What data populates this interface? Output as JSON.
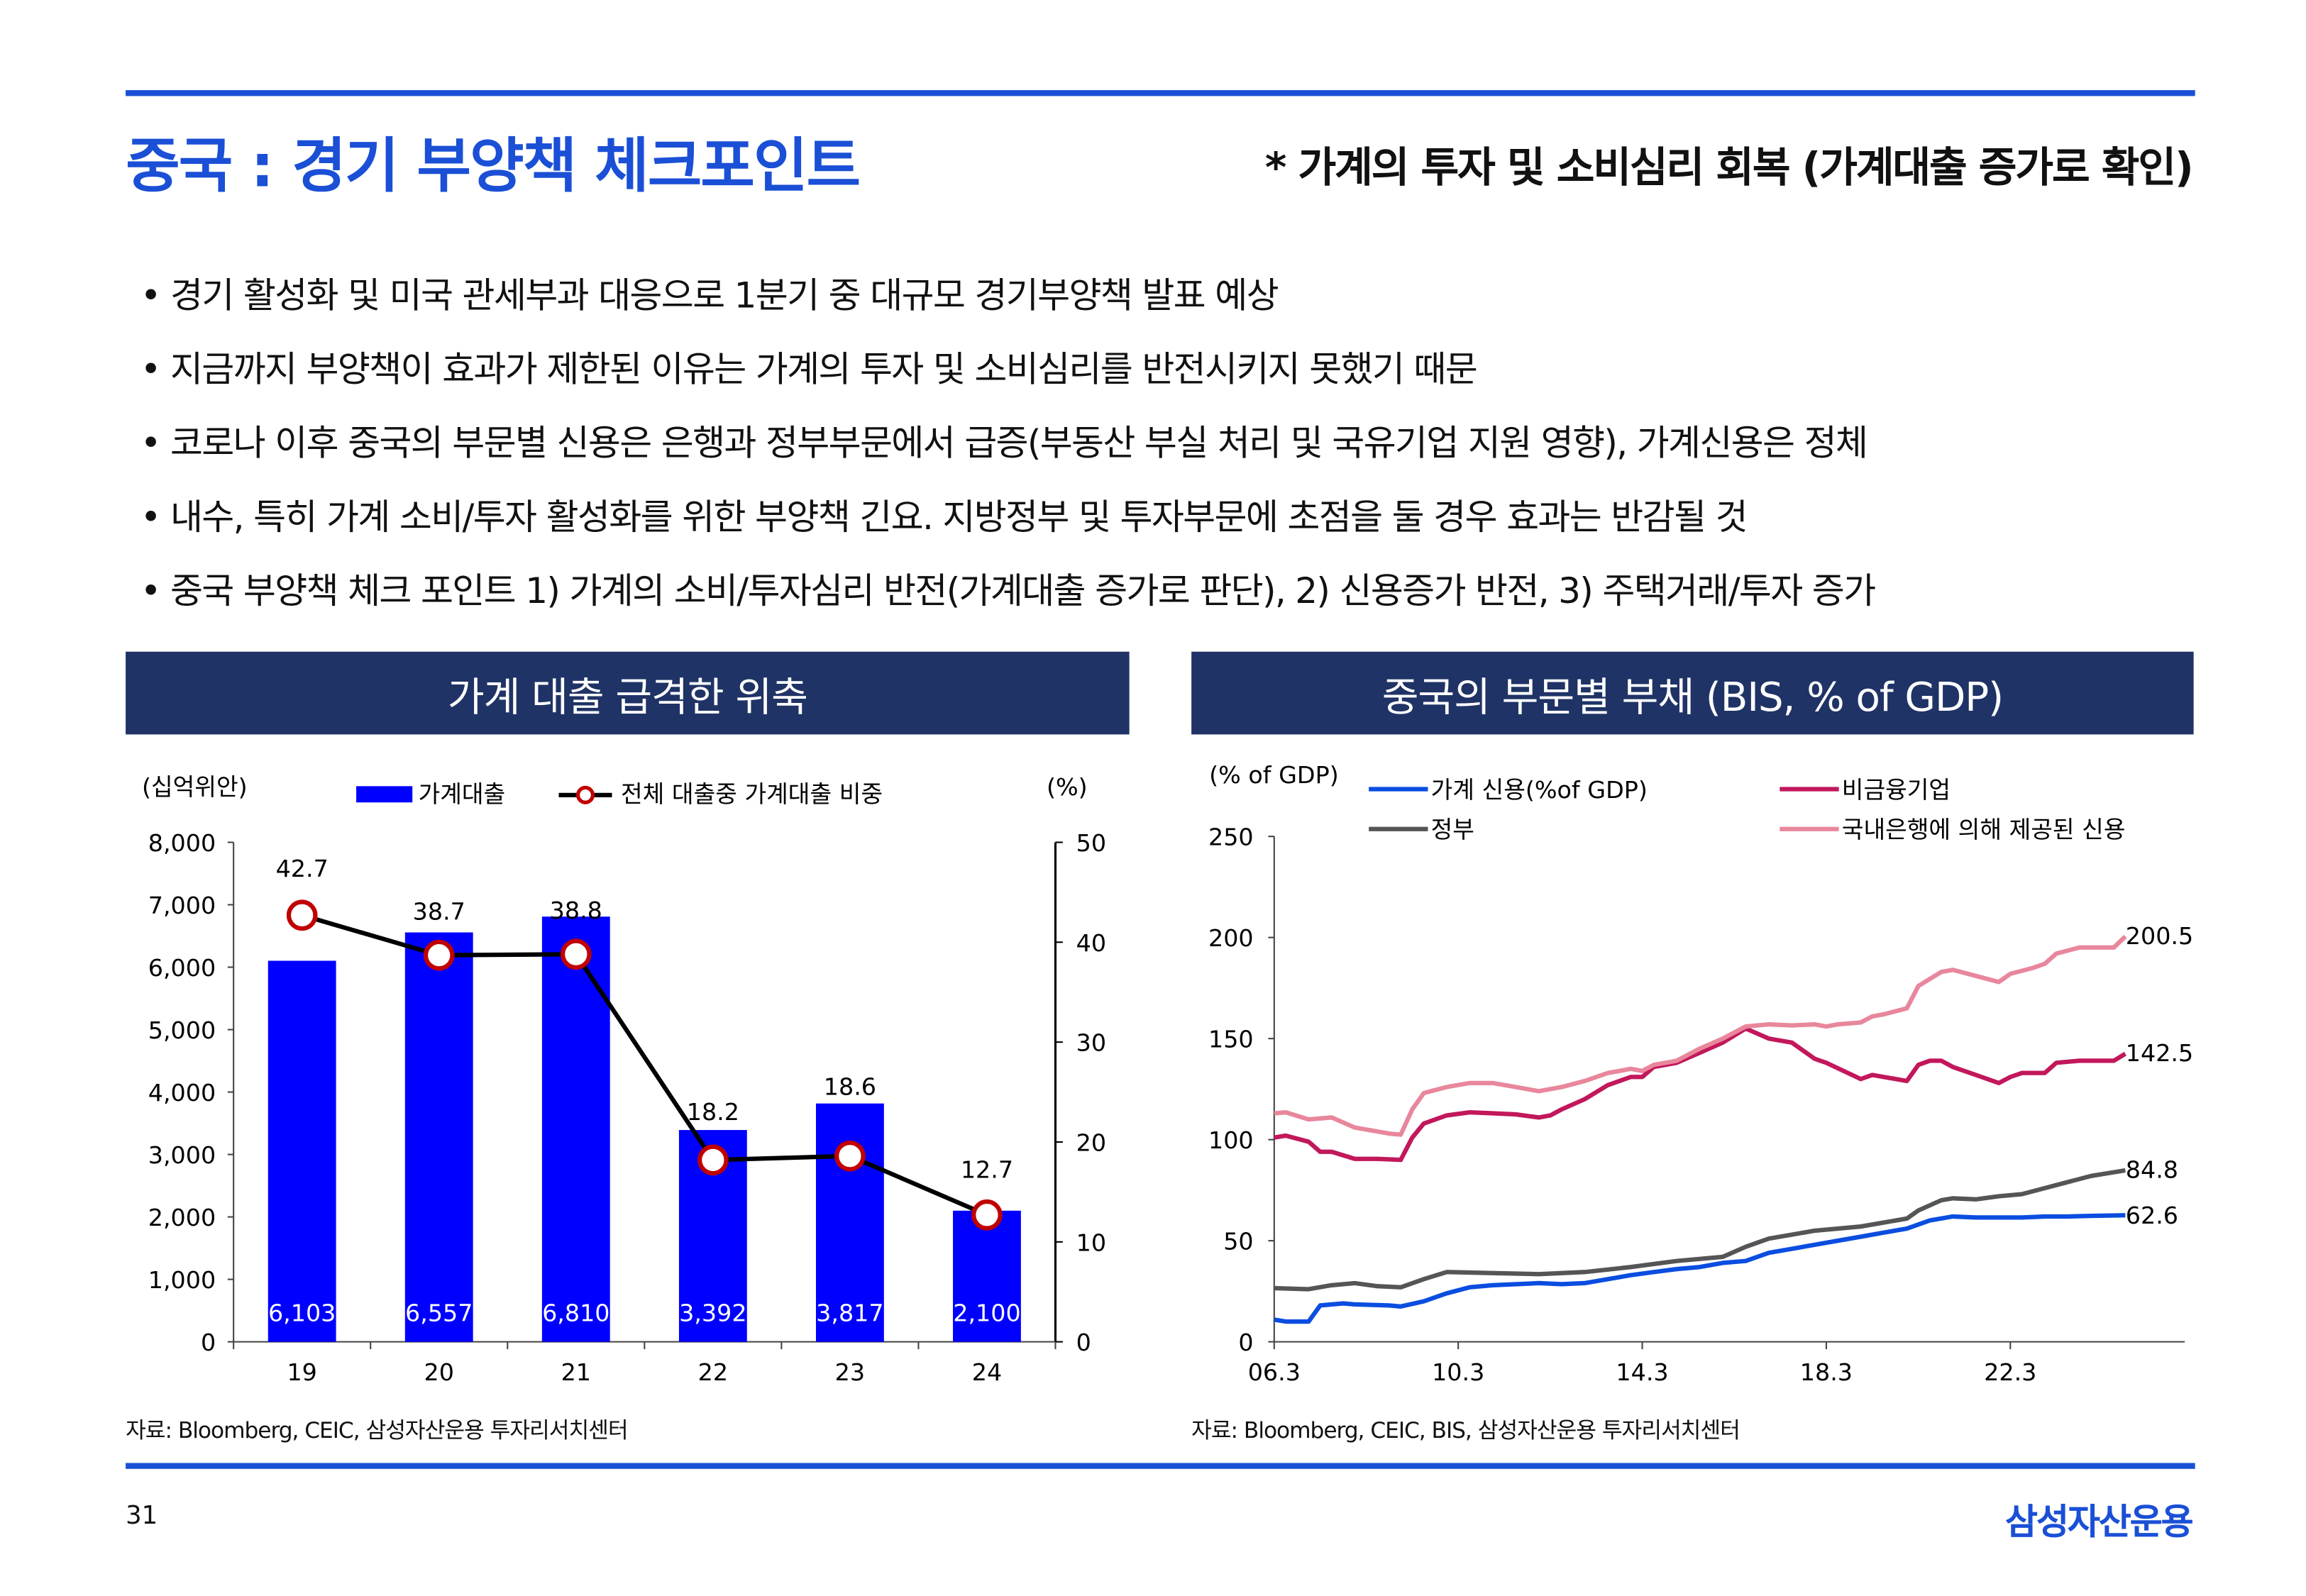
{
  "header": {
    "title": "중국 : 경기 부양책 체크포인트",
    "subtitle": "* 가계의 투자 및 소비심리 회복 (가계대출 증가로 확인)"
  },
  "bullets": [
    "• 경기 활성화 및 미국 관세부과 대응으로 1분기 중 대규모 경기부양책 발표 예상",
    "• 지금까지 부양책이 효과가 제한된 이유는 가계의 투자 및 소비심리를 반전시키지 못했기 때문",
    "• 코로나 이후 중국의 부문별 신용은 은행과 정부부문에서 급증(부동산 부실 처리 및 국유기업 지원 영향), 가계신용은 정체",
    "• 내수, 특히 가계 소비/투자 활성화를 위한 부양책 긴요. 지방정부 및 투자부문에 초점을 둘 경우 효과는 반감될 것",
    "• 중국 부양책 체크 포인트 1) 가계의 소비/투자심리 반전(가계대출 증가로 판단), 2) 신용증가 반전, 3) 주택거래/투자 증가"
  ],
  "footer": {
    "page": "31",
    "logo": "삼성자산운용"
  },
  "colors": {
    "accent": "#1a4fd6",
    "navy": "#1f3366",
    "bar": "#0000ff",
    "household": "#0a4de0",
    "gov": "#555555",
    "nfc": "#c2185b",
    "bank": "#e8879c"
  },
  "chart_data": [
    {
      "type": "bar",
      "title": "가계 대출 급격한 위축",
      "source": "자료: Bloomberg, CEIC, 삼성자산운용 투자리서치센터",
      "ylabel": "(십억위안)",
      "y2label": "(%)",
      "categories": [
        "19",
        "20",
        "21",
        "22",
        "23",
        "24"
      ],
      "ylim": [
        0,
        8000
      ],
      "yticks": [
        "0",
        "1,000",
        "2,000",
        "3,000",
        "4,000",
        "5,000",
        "6,000",
        "7,000",
        "8,000"
      ],
      "y2lim": [
        0,
        50
      ],
      "y2ticks": [
        "0",
        "10",
        "20",
        "30",
        "40",
        "50"
      ],
      "series": [
        {
          "name": "가계대출",
          "type": "bar",
          "values": [
            6103,
            6557,
            6810,
            3392,
            3817,
            2100
          ],
          "labels": [
            "6,103",
            "6,557",
            "6,810",
            "3,392",
            "3,817",
            "2,100"
          ]
        },
        {
          "name": "전체 대출중 가계대출 비중",
          "type": "line",
          "axis": "right",
          "values": [
            42.7,
            38.7,
            38.8,
            18.2,
            18.6,
            12.7
          ],
          "labels": [
            "42.7",
            "38.7",
            "38.8",
            "18.2",
            "18.6",
            "12.7"
          ]
        }
      ]
    },
    {
      "type": "line",
      "title": "중국의 부문별 부채 (BIS, % of GDP)",
      "source": "자료: Bloomberg, CEIC, BIS, 삼성자산운용 투자리서치센터",
      "ylabel": "(% of GDP)",
      "ylim": [
        0,
        250
      ],
      "yticks": [
        "0",
        "50",
        "100",
        "150",
        "200",
        "250"
      ],
      "xticks": [
        "06.3",
        "10.3",
        "14.3",
        "18.3",
        "22.3"
      ],
      "series": [
        {
          "name": "가계 신용(%of GDP)",
          "color": "#0a4de0",
          "end_label": "62.6",
          "points": [
            [
              2006.25,
              11
            ],
            [
              2006.5,
              10
            ],
            [
              2007.0,
              10
            ],
            [
              2007.25,
              18
            ],
            [
              2007.75,
              19
            ],
            [
              2008.0,
              18.5
            ],
            [
              2008.75,
              18
            ],
            [
              2009.0,
              17.5
            ],
            [
              2009.5,
              20
            ],
            [
              2010.0,
              24
            ],
            [
              2010.5,
              27
            ],
            [
              2011.0,
              28
            ],
            [
              2012.0,
              29
            ],
            [
              2012.5,
              28.5
            ],
            [
              2013.0,
              29
            ],
            [
              2013.5,
              31
            ],
            [
              2014.0,
              33
            ],
            [
              2014.5,
              34.5
            ],
            [
              2015.0,
              36
            ],
            [
              2015.5,
              37
            ],
            [
              2016.0,
              39
            ],
            [
              2016.5,
              40
            ],
            [
              2017.0,
              44
            ],
            [
              2017.5,
              46
            ],
            [
              2018.0,
              48
            ],
            [
              2018.5,
              50
            ],
            [
              2019.0,
              52
            ],
            [
              2019.5,
              54
            ],
            [
              2020.0,
              56
            ],
            [
              2020.5,
              60
            ],
            [
              2021.0,
              62
            ],
            [
              2021.5,
              61.5
            ],
            [
              2022.0,
              61.5
            ],
            [
              2022.5,
              61.5
            ],
            [
              2023.0,
              62
            ],
            [
              2023.5,
              62
            ],
            [
              2024.0,
              62.3
            ],
            [
              2024.75,
              62.6
            ]
          ]
        },
        {
          "name": "정부",
          "color": "#555555",
          "end_label": "84.8",
          "points": [
            [
              2006.25,
              26.5
            ],
            [
              2007.0,
              26
            ],
            [
              2007.5,
              28
            ],
            [
              2008.0,
              29
            ],
            [
              2008.5,
              27.5
            ],
            [
              2009.0,
              27
            ],
            [
              2009.5,
              31
            ],
            [
              2010.0,
              34.5
            ],
            [
              2011.0,
              34
            ],
            [
              2012.0,
              33.5
            ],
            [
              2013.0,
              34.5
            ],
            [
              2014.0,
              37
            ],
            [
              2015.0,
              40
            ],
            [
              2016.0,
              42
            ],
            [
              2016.5,
              47
            ],
            [
              2017.0,
              51
            ],
            [
              2017.5,
              53
            ],
            [
              2018.0,
              55
            ],
            [
              2019.0,
              57
            ],
            [
              2019.5,
              59
            ],
            [
              2020.0,
              61
            ],
            [
              2020.25,
              65
            ],
            [
              2020.75,
              70
            ],
            [
              2021.0,
              71
            ],
            [
              2021.5,
              70.5
            ],
            [
              2022.0,
              72
            ],
            [
              2022.5,
              73
            ],
            [
              2023.0,
              76
            ],
            [
              2023.5,
              79
            ],
            [
              2024.0,
              82
            ],
            [
              2024.75,
              84.8
            ]
          ]
        },
        {
          "name": "비금융기업",
          "color": "#c2185b",
          "end_label": "142.5",
          "points": [
            [
              2006.25,
              101
            ],
            [
              2006.5,
              102
            ],
            [
              2007.0,
              99
            ],
            [
              2007.25,
              94
            ],
            [
              2007.5,
              94
            ],
            [
              2008.0,
              90.5
            ],
            [
              2008.5,
              90.5
            ],
            [
              2009.0,
              90
            ],
            [
              2009.25,
              101
            ],
            [
              2009.5,
              108
            ],
            [
              2010.0,
              112
            ],
            [
              2010.5,
              113.5
            ],
            [
              2011.0,
              113
            ],
            [
              2011.5,
              112.5
            ],
            [
              2012.0,
              111
            ],
            [
              2012.25,
              112
            ],
            [
              2012.5,
              115
            ],
            [
              2013.0,
              120
            ],
            [
              2013.5,
              127
            ],
            [
              2014.0,
              131
            ],
            [
              2014.25,
              131
            ],
            [
              2014.5,
              136
            ],
            [
              2015.0,
              138
            ],
            [
              2015.5,
              143
            ],
            [
              2016.0,
              148
            ],
            [
              2016.5,
              155
            ],
            [
              2017.0,
              150
            ],
            [
              2017.5,
              148
            ],
            [
              2018.0,
              140
            ],
            [
              2018.25,
              138
            ],
            [
              2019.0,
              130
            ],
            [
              2019.25,
              132
            ],
            [
              2020.0,
              129
            ],
            [
              2020.25,
              137
            ],
            [
              2020.5,
              139
            ],
            [
              2020.75,
              139
            ],
            [
              2021.0,
              136
            ],
            [
              2021.5,
              132
            ],
            [
              2022.0,
              128
            ],
            [
              2022.25,
              131
            ],
            [
              2022.5,
              133
            ],
            [
              2023.0,
              133
            ],
            [
              2023.25,
              138
            ],
            [
              2023.75,
              139
            ],
            [
              2024.5,
              139
            ],
            [
              2024.75,
              142.5
            ]
          ]
        },
        {
          "name": "국내은행에 의해 제공된 신용",
          "color": "#e8879c",
          "end_label": "200.5",
          "points": [
            [
              2006.25,
              113
            ],
            [
              2006.5,
              113.5
            ],
            [
              2007.0,
              110
            ],
            [
              2007.5,
              111
            ],
            [
              2008.0,
              106
            ],
            [
              2008.75,
              103
            ],
            [
              2009.0,
              102.5
            ],
            [
              2009.25,
              115
            ],
            [
              2009.5,
              123
            ],
            [
              2010.0,
              126
            ],
            [
              2010.5,
              128
            ],
            [
              2011.0,
              128
            ],
            [
              2011.5,
              126
            ],
            [
              2012.0,
              124
            ],
            [
              2012.5,
              126
            ],
            [
              2013.0,
              129
            ],
            [
              2013.5,
              133
            ],
            [
              2014.0,
              135
            ],
            [
              2014.25,
              134
            ],
            [
              2014.5,
              137
            ],
            [
              2015.0,
              139
            ],
            [
              2015.5,
              145
            ],
            [
              2016.0,
              150
            ],
            [
              2016.5,
              156
            ],
            [
              2017.0,
              157
            ],
            [
              2017.5,
              156.5
            ],
            [
              2018.0,
              157
            ],
            [
              2018.25,
              156
            ],
            [
              2018.5,
              157
            ],
            [
              2019.0,
              158
            ],
            [
              2019.25,
              161
            ],
            [
              2019.5,
              162
            ],
            [
              2020.0,
              165
            ],
            [
              2020.25,
              176
            ],
            [
              2020.75,
              183
            ],
            [
              2021.0,
              184
            ],
            [
              2021.5,
              181
            ],
            [
              2022.0,
              178
            ],
            [
              2022.25,
              182
            ],
            [
              2022.75,
              185
            ],
            [
              2023.0,
              187
            ],
            [
              2023.25,
              192
            ],
            [
              2023.75,
              195
            ],
            [
              2024.5,
              195
            ],
            [
              2024.75,
              200.5
            ]
          ]
        }
      ]
    }
  ]
}
